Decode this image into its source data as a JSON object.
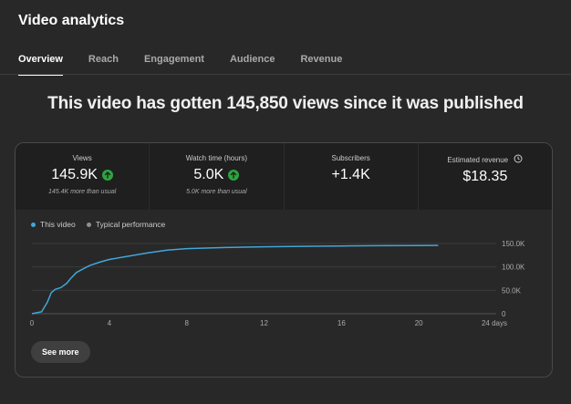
{
  "app": {
    "title": "Video analytics"
  },
  "tabs": [
    {
      "label": "Overview",
      "active": true
    },
    {
      "label": "Reach",
      "active": false
    },
    {
      "label": "Engagement",
      "active": false
    },
    {
      "label": "Audience",
      "active": false
    },
    {
      "label": "Revenue",
      "active": false
    }
  ],
  "headline": "This video has gotten 145,850 views since it was published",
  "metrics": [
    {
      "label": "Views",
      "value": "145.9K",
      "sub": "145.4K more than usual",
      "trend": "up"
    },
    {
      "label": "Watch time (hours)",
      "value": "5.0K",
      "sub": "5.0K more than usual",
      "trend": "up"
    },
    {
      "label": "Subscribers",
      "value": "+1.4K",
      "sub": ""
    },
    {
      "label": "Estimated revenue",
      "value": "$18.35",
      "sub": "",
      "icon": "clock-icon"
    }
  ],
  "legend": {
    "this_video": "This video",
    "typical": "Typical performance"
  },
  "see_more": "See more",
  "colors": {
    "accent": "#3ea6ff",
    "line": "#41a6d8",
    "up": "#2ba640",
    "typical": "#909090"
  },
  "chart_data": {
    "type": "line",
    "xlabel": "",
    "ylabel": "",
    "xlim": [
      0,
      24
    ],
    "ylim": [
      0,
      150000
    ],
    "x_ticks": [
      0,
      4,
      8,
      12,
      16,
      20,
      24
    ],
    "x_tick_labels": [
      "0",
      "4",
      "8",
      "12",
      "16",
      "20",
      "24 days"
    ],
    "y_ticks": [
      0,
      50000,
      100000,
      150000
    ],
    "y_tick_labels": [
      "0",
      "50.0K",
      "100.0K",
      "150.0K"
    ],
    "grid": true,
    "series": [
      {
        "name": "This video",
        "x": [
          0,
          0.5,
          0.8,
          1.0,
          1.2,
          1.5,
          1.8,
          2.0,
          2.3,
          2.7,
          3.0,
          3.5,
          4.0,
          5.0,
          6.0,
          7.0,
          8.0,
          10.0,
          12.0,
          14.0,
          16.0,
          18.0,
          20.0,
          21.0
        ],
        "y": [
          0,
          4000,
          25000,
          45000,
          52000,
          56000,
          65000,
          75000,
          88000,
          97000,
          103000,
          110000,
          116000,
          123000,
          130000,
          136000,
          139000,
          141500,
          143000,
          144000,
          144800,
          145300,
          145700,
          145850
        ]
      }
    ]
  }
}
